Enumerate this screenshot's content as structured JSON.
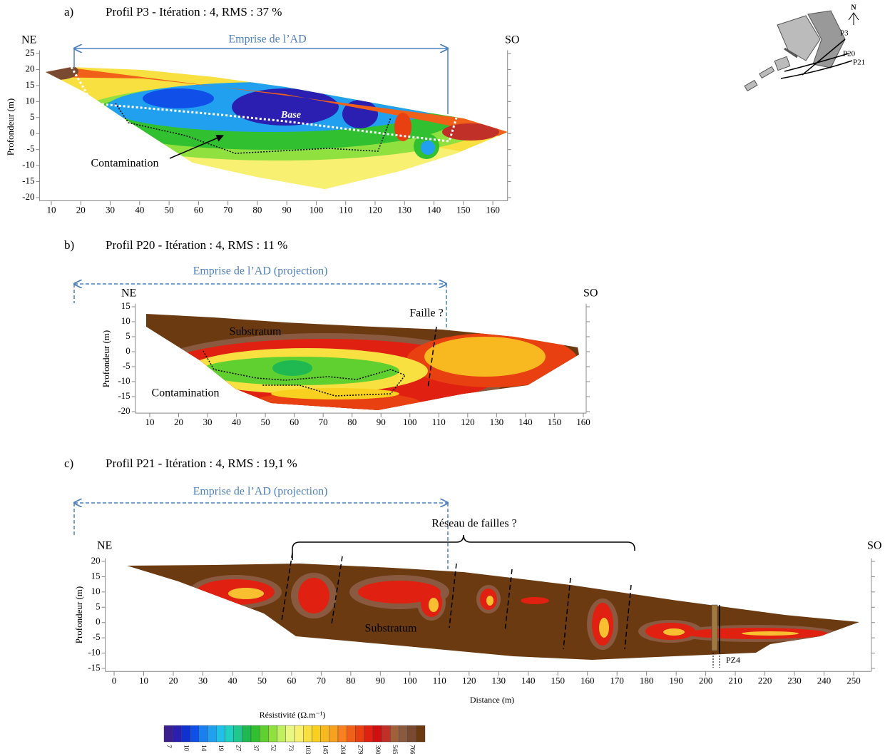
{
  "chart_data": [
    {
      "type": "section",
      "label": "a)",
      "title": "Profil P3 - Itération : 4, RMS : 37 %",
      "left_label": "NE",
      "right_label": "SO",
      "ylabel": "Profondeur (m)",
      "annotations": [
        "Emprise de l’AD",
        "Base",
        "Contamination"
      ],
      "xlim": [
        6,
        165
      ],
      "ylim": [
        -21,
        26
      ],
      "xticks": [
        10,
        20,
        30,
        40,
        50,
        60,
        70,
        80,
        90,
        100,
        110,
        120,
        130,
        140,
        150,
        160
      ],
      "yticks": [
        -20,
        -15,
        -10,
        -5,
        0,
        5,
        10,
        15,
        20,
        25
      ]
    },
    {
      "type": "section",
      "label": "b)",
      "title": "Profil P20 - Itération : 4, RMS : 11 %",
      "left_label": "NE",
      "right_label": "SO",
      "ylabel": "Profondeur (m)",
      "annotations": [
        "Emprise de l’AD (projection)",
        "Substratum",
        "Faille ?",
        "Contamination"
      ],
      "xlim": [
        5,
        161
      ],
      "ylim": [
        -20.5,
        16
      ],
      "xticks": [
        10,
        20,
        30,
        40,
        50,
        60,
        70,
        80,
        90,
        100,
        110,
        120,
        130,
        140,
        150,
        160
      ],
      "yticks": [
        -20,
        -15,
        -10,
        -5,
        0,
        5,
        10,
        15
      ]
    },
    {
      "type": "section",
      "label": "c)",
      "title": "Profil P21 - Itération : 4, RMS : 19,1 %",
      "left_label": "NE",
      "right_label": "SO",
      "ylabel": "Profondeur (m)",
      "xlabel": "Distance (m)",
      "annotations": [
        "Emprise de l’AD (projection)",
        "Réseau de failles ?",
        "Substratum",
        "PZ4"
      ],
      "xlim": [
        -3,
        256
      ],
      "ylim": [
        -16,
        21
      ],
      "xticks": [
        0,
        10,
        20,
        30,
        40,
        50,
        60,
        70,
        80,
        90,
        100,
        110,
        120,
        130,
        140,
        150,
        160,
        170,
        180,
        190,
        200,
        210,
        220,
        230,
        240,
        250
      ],
      "yticks": [
        -15,
        -10,
        -5,
        0,
        5,
        10,
        15,
        20
      ]
    }
  ],
  "colorbar": {
    "title": "Résistivité (Ω.m⁻¹)",
    "labels": [
      "7",
      "10",
      "14",
      "19",
      "27",
      "37",
      "52",
      "73",
      "103",
      "145",
      "204",
      "279",
      "390",
      "545",
      "766"
    ],
    "colors": [
      "#3b1f8f",
      "#2a1fb0",
      "#1030d0",
      "#1050e8",
      "#1a7ff0",
      "#22a0f0",
      "#20c0e8",
      "#20d0c0",
      "#20c890",
      "#20b850",
      "#30c030",
      "#60d030",
      "#90e040",
      "#c0f060",
      "#e8f880",
      "#f8f070",
      "#f8e040",
      "#f8d020",
      "#f8b820",
      "#f8a020",
      "#f88020",
      "#f06018",
      "#e84010",
      "#e02010",
      "#d01010",
      "#c03028",
      "#a0603a",
      "#8a5a40",
      "#7a4a30",
      "#6b3a10"
    ]
  },
  "map_labels": [
    "N",
    "P3",
    "P20",
    "P21"
  ]
}
